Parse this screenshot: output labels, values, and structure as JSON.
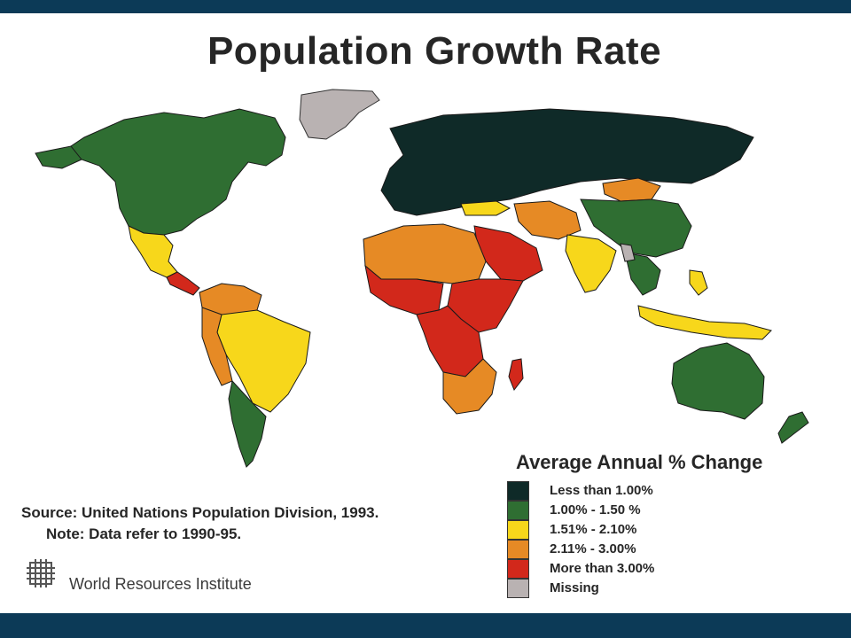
{
  "title": "Population Growth Rate",
  "legend": {
    "title": "Average Annual % Change",
    "items": [
      {
        "label": "Less than 1.00%",
        "color": "#0f2a28"
      },
      {
        "label": "1.00% - 1.50 %",
        "color": "#2f6e32"
      },
      {
        "label": "1.51% - 2.10%",
        "color": "#f7d71b"
      },
      {
        "label": "2.11% - 3.00%",
        "color": "#e68a25"
      },
      {
        "label": "More than 3.00%",
        "color": "#d2281b"
      },
      {
        "label": "Missing",
        "color": "#b9b2b2"
      }
    ]
  },
  "source": "Source: United Nations Population Division, 1993.",
  "note": "Note: Data refer to 1990-95.",
  "organization": "World Resources Institute",
  "colors": {
    "frame": "#0c3a57",
    "background": "#ffffff",
    "text": "#262626"
  }
}
